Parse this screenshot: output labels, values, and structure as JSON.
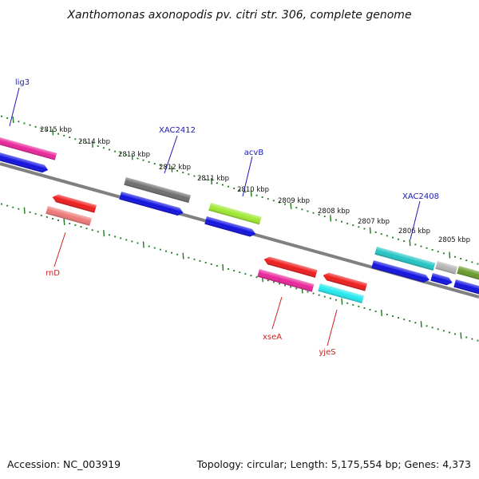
{
  "title": "Xanthomonas axonopodis pv. citri str. 306, complete genome",
  "footer": {
    "accession": "Accession: NC_003919",
    "topology": "Topology: circular; Length: 5,175,554 bp; Genes: 4,373"
  },
  "colors": {
    "label_forward": "#1a1ab8",
    "label_reverse": "#d42020",
    "ticks": "#1f7a1f",
    "backbone": "#808080"
  },
  "kbp_labels": [
    "2815 kbp",
    "2814 kbp",
    "2813 kbp",
    "2812 kbp",
    "2811 kbp",
    "2810 kbp",
    "2809 kbp",
    "2808 kbp",
    "2807 kbp",
    "2806 kbp",
    "2805 kbp"
  ],
  "gene_labels": [
    {
      "name": "lig3",
      "strand": "forward"
    },
    {
      "name": "XAC2412",
      "strand": "forward"
    },
    {
      "name": "acvB",
      "strand": "forward"
    },
    {
      "name": "XAC2408",
      "strand": "forward"
    },
    {
      "name": "rnD",
      "strand": "reverse"
    },
    {
      "name": "xseA",
      "strand": "reverse"
    },
    {
      "name": "yjeS",
      "strand": "reverse"
    }
  ],
  "features": [
    {
      "name": "magenta-feature-1",
      "color": "#e8259a"
    },
    {
      "name": "blue-feature-1",
      "color": "#1010e0"
    },
    {
      "name": "grey-feature-xac2412",
      "color": "#6e6e6e"
    },
    {
      "name": "blue-feature-2",
      "color": "#1010e0"
    },
    {
      "name": "lime-feature-acvb",
      "color": "#9ee830"
    },
    {
      "name": "blue-feature-3",
      "color": "#1010e0"
    },
    {
      "name": "teal-feature-xac2408",
      "color": "#22c4c4"
    },
    {
      "name": "lightgrey-feature",
      "color": "#b4b4b4"
    },
    {
      "name": "olive-feature",
      "color": "#6a9a2a"
    },
    {
      "name": "blue-feature-4",
      "color": "#1010e0"
    },
    {
      "name": "blue-feature-5",
      "color": "#1010e0"
    },
    {
      "name": "blue-feature-6",
      "color": "#1010e0"
    },
    {
      "name": "red-feature-rnd",
      "color": "#ee1c1c"
    },
    {
      "name": "salmon-feature",
      "color": "#ee7878"
    },
    {
      "name": "red-feature-xsea",
      "color": "#ee1c1c"
    },
    {
      "name": "magenta-feature-2",
      "color": "#e8259a"
    },
    {
      "name": "red-feature-yjes",
      "color": "#ee1c1c"
    },
    {
      "name": "cyan-feature",
      "color": "#22e8ee"
    }
  ]
}
